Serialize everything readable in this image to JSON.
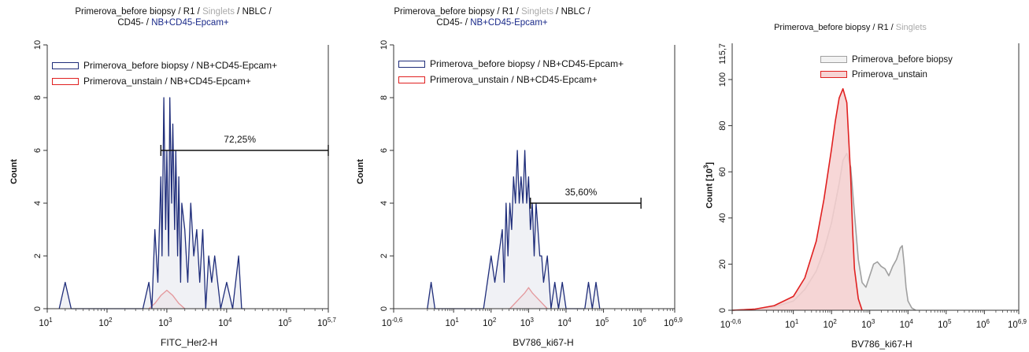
{
  "chart_data": [
    {
      "type": "area",
      "title": {
        "p1": "Primerova_before biopsy / R1 / ",
        "grey": "Singlets",
        "p2": " / NBLC /",
        "line2a": "CD45- / ",
        "line2b": "NB+CD45-Epcam+"
      },
      "xlabel": "FITC_Her2-H",
      "ylabel": "Count",
      "x_scale": "log",
      "xlim_log10": [
        1,
        5.7
      ],
      "ylim": [
        0,
        10
      ],
      "yticks": [
        0,
        2,
        4,
        6,
        8,
        10
      ],
      "xticks": [
        {
          "base": "10",
          "exp": "1",
          "v": 1
        },
        {
          "base": "10",
          "exp": "2",
          "v": 2
        },
        {
          "base": "10",
          "exp": "3",
          "v": 3
        },
        {
          "base": "10",
          "exp": "4",
          "v": 4
        },
        {
          "base": "10",
          "exp": "5",
          "v": 5
        },
        {
          "base": "10",
          "exp": "5,7",
          "v": 5.7
        }
      ],
      "legend": [
        {
          "label": "Primerova_before biopsy / NB+CD45-Epcam+",
          "color": "#1f2d7a",
          "fill": "#ffffff"
        },
        {
          "label": "Primerova_unstain / NB+CD45-Epcam+",
          "color": "#e02020",
          "fill": "#ffffff"
        }
      ],
      "gate": {
        "label": "72,25%",
        "from_log10": 2.9,
        "to_log10": 5.7,
        "y": 6
      },
      "series": [
        {
          "name": "Primerova_before biopsy / NB+CD45-Epcam+",
          "color": "#1f2d7a",
          "x_log10": [
            1.2,
            1.3,
            1.4,
            2.6,
            2.7,
            2.75,
            2.8,
            2.85,
            2.9,
            2.92,
            2.95,
            2.98,
            3.0,
            3.03,
            3.05,
            3.08,
            3.1,
            3.13,
            3.15,
            3.18,
            3.2,
            3.23,
            3.25,
            3.3,
            3.35,
            3.4,
            3.45,
            3.5,
            3.55,
            3.6,
            3.65,
            3.7,
            3.75,
            3.8,
            3.9,
            4.0,
            4.1,
            4.2,
            4.25,
            4.3
          ],
          "y": [
            0,
            1,
            0,
            0,
            1,
            0,
            3,
            1,
            5,
            2,
            8,
            3,
            6,
            2,
            8,
            4,
            7,
            3,
            6,
            2,
            5,
            1,
            4,
            3,
            1,
            4,
            2,
            3,
            1,
            3,
            0,
            2,
            1,
            2,
            0,
            1,
            0,
            2,
            0,
            0
          ]
        },
        {
          "name": "Primerova_unstain / NB+CD45-Epcam+",
          "color": "#e02020",
          "x_log10": [
            2.7,
            2.8,
            2.9,
            3.0,
            3.1,
            3.2,
            3.3
          ],
          "y": [
            0,
            0.2,
            0.5,
            0.7,
            0.5,
            0.2,
            0
          ]
        }
      ]
    },
    {
      "type": "area",
      "title": {
        "p1": "Primerova_before biopsy / R1 / ",
        "grey": "Singlets",
        "p2": " / NBLC /",
        "line2a": "CD45- / ",
        "line2b": "NB+CD45-Epcam+"
      },
      "xlabel": "BV786_ki67-H",
      "ylabel": "Count",
      "x_scale": "log",
      "xlim_log10": [
        -0.6,
        6.9
      ],
      "ylim": [
        0,
        10
      ],
      "yticks": [
        0,
        2,
        4,
        6,
        8,
        10
      ],
      "xticks": [
        {
          "base": "10",
          "exp": "-0,6",
          "v": -0.6
        },
        {
          "base": "10",
          "exp": "1",
          "v": 1
        },
        {
          "base": "10",
          "exp": "2",
          "v": 2
        },
        {
          "base": "10",
          "exp": "3",
          "v": 3
        },
        {
          "base": "10",
          "exp": "4",
          "v": 4
        },
        {
          "base": "10",
          "exp": "5",
          "v": 5
        },
        {
          "base": "10",
          "exp": "6",
          "v": 6
        },
        {
          "base": "10",
          "exp": "6,9",
          "v": 6.9
        }
      ],
      "legend": [
        {
          "label": "Primerova_before biopsy / NB+CD45-Epcam+",
          "color": "#1f2d7a",
          "fill": "#ffffff"
        },
        {
          "label": "Primerova_unstain / NB+CD45-Epcam+",
          "color": "#e02020",
          "fill": "#ffffff"
        }
      ],
      "gate": {
        "label": "35,60%",
        "from_log10": 3.05,
        "to_log10": 6,
        "y": 4
      },
      "series": [
        {
          "name": "Primerova_before biopsy / NB+CD45-Epcam+",
          "color": "#1f2d7a",
          "x_log10": [
            0.3,
            0.4,
            0.5,
            1.8,
            1.9,
            2.0,
            2.1,
            2.2,
            2.3,
            2.35,
            2.4,
            2.45,
            2.5,
            2.55,
            2.6,
            2.65,
            2.7,
            2.75,
            2.8,
            2.85,
            2.9,
            2.95,
            3.0,
            3.05,
            3.1,
            3.15,
            3.2,
            3.25,
            3.3,
            3.35,
            3.4,
            3.5,
            3.6,
            3.7,
            3.8,
            3.9,
            4.0,
            4.5,
            4.6,
            4.7,
            4.8,
            4.9
          ],
          "y": [
            0,
            1,
            0,
            0,
            1,
            2,
            1,
            2,
            3,
            1,
            4,
            2,
            4,
            3,
            5,
            4,
            6,
            4,
            5,
            4,
            6,
            4,
            5,
            3,
            4,
            2,
            4,
            3,
            2,
            2,
            1,
            2,
            0,
            1,
            0,
            1,
            0,
            0,
            1,
            0,
            1,
            0
          ]
        },
        {
          "name": "Primerova_unstain / NB+CD45-Epcam+",
          "color": "#e02020",
          "x_log10": [
            2.5,
            2.7,
            2.9,
            3.0,
            3.1,
            3.3,
            3.5
          ],
          "y": [
            0,
            0.3,
            0.6,
            0.8,
            0.6,
            0.3,
            0
          ]
        }
      ]
    },
    {
      "type": "area",
      "title": {
        "p1": "Primerova_before biopsy / R1 / ",
        "grey": "Singlets"
      },
      "xlabel": "BV786_ki67-H",
      "ylabel": "Count  [10",
      "ylabel_exp": "3",
      "ylabel_end": "]",
      "x_scale": "log",
      "xlim_log10": [
        -0.6,
        6.9
      ],
      "ylim": [
        0,
        115.7
      ],
      "yticks": [
        0,
        20,
        40,
        60,
        80,
        100
      ],
      "ytop_label": "115,7",
      "xticks": [
        {
          "base": "10",
          "exp": "-0,6",
          "v": -0.6
        },
        {
          "base": "10",
          "exp": "1",
          "v": 1
        },
        {
          "base": "10",
          "exp": "2",
          "v": 2
        },
        {
          "base": "10",
          "exp": "3",
          "v": 3
        },
        {
          "base": "10",
          "exp": "4",
          "v": 4
        },
        {
          "base": "10",
          "exp": "5",
          "v": 5
        },
        {
          "base": "10",
          "exp": "6",
          "v": 6
        },
        {
          "base": "10",
          "exp": "6,9",
          "v": 6.9
        }
      ],
      "legend": [
        {
          "label": "Primerova_before biopsy",
          "color": "#a0a0a0",
          "fill": "#f2f2f2"
        },
        {
          "label": "Primerova_unstain",
          "color": "#e02020",
          "fill": "#f6d4d4"
        }
      ],
      "series": [
        {
          "name": "Primerova_before biopsy",
          "color": "#a0a0a0",
          "fill": "#eeeeee",
          "x_log10": [
            -0.6,
            0.0,
            0.5,
            1.0,
            1.3,
            1.6,
            1.8,
            2.0,
            2.2,
            2.3,
            2.4,
            2.5,
            2.6,
            2.7,
            2.8,
            2.9,
            3.0,
            3.1,
            3.2,
            3.3,
            3.4,
            3.5,
            3.6,
            3.7,
            3.8,
            3.85,
            3.9,
            3.95,
            4.0,
            4.1,
            4.2
          ],
          "y": [
            0,
            0.5,
            1.5,
            4,
            9,
            17,
            26,
            38,
            55,
            65,
            68,
            62,
            42,
            22,
            12,
            10,
            15,
            20,
            21,
            19,
            18,
            15,
            19,
            22,
            27,
            28,
            20,
            10,
            4,
            1,
            0
          ]
        },
        {
          "name": "Primerova_unstain",
          "color": "#e02020",
          "fill": "#f6d0d0",
          "x_log10": [
            -0.6,
            0.0,
            0.5,
            1.0,
            1.3,
            1.6,
            1.8,
            2.0,
            2.1,
            2.2,
            2.3,
            2.4,
            2.5,
            2.55,
            2.6,
            2.7,
            2.8
          ],
          "y": [
            0,
            0.5,
            2,
            6,
            14,
            30,
            48,
            70,
            82,
            92,
            96,
            90,
            58,
            35,
            18,
            5,
            0
          ]
        }
      ]
    }
  ]
}
